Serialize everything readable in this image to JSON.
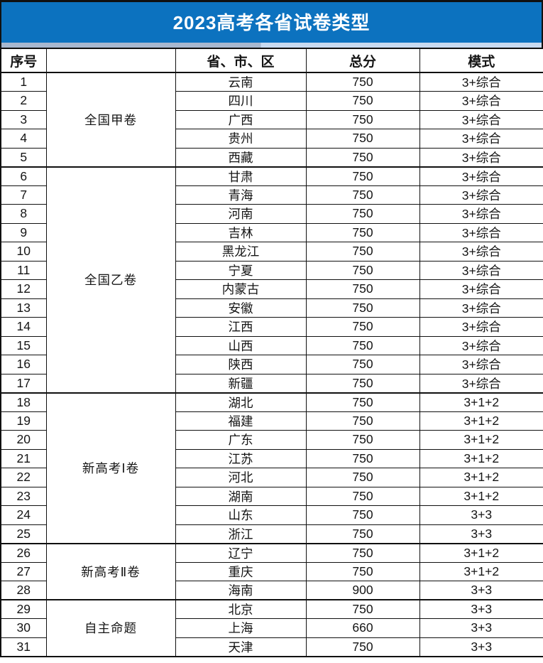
{
  "title": "2023高考各省试卷类型",
  "colors": {
    "banner_bg": "#0c72bf",
    "banner_text": "#ffffff",
    "table_border": "#101010",
    "strip_left": "#a8b8cf",
    "strip_right": "#c8daf0",
    "cell_bg": "#ffffff",
    "cell_text": "#151515"
  },
  "chart_data": {
    "type": "table",
    "title": "2023高考各省试卷类型",
    "columns": [
      "序号",
      "",
      "省、市、区",
      "总分",
      "模式"
    ],
    "header_labels": {
      "index": "序号",
      "group": "",
      "region": "省、市、区",
      "score": "总分",
      "mode": "模式"
    },
    "groups": [
      {
        "label": "全国甲卷",
        "rows": [
          [
            1,
            "云南",
            750,
            "3+综合"
          ],
          [
            2,
            "四川",
            750,
            "3+综合"
          ],
          [
            3,
            "广西",
            750,
            "3+综合"
          ],
          [
            4,
            "贵州",
            750,
            "3+综合"
          ],
          [
            5,
            "西藏",
            750,
            "3+综合"
          ]
        ]
      },
      {
        "label": "全国乙卷",
        "rows": [
          [
            6,
            "甘肃",
            750,
            "3+综合"
          ],
          [
            7,
            "青海",
            750,
            "3+综合"
          ],
          [
            8,
            "河南",
            750,
            "3+综合"
          ],
          [
            9,
            "吉林",
            750,
            "3+综合"
          ],
          [
            10,
            "黑龙江",
            750,
            "3+综合"
          ],
          [
            11,
            "宁夏",
            750,
            "3+综合"
          ],
          [
            12,
            "内蒙古",
            750,
            "3+综合"
          ],
          [
            13,
            "安徽",
            750,
            "3+综合"
          ],
          [
            14,
            "江西",
            750,
            "3+综合"
          ],
          [
            15,
            "山西",
            750,
            "3+综合"
          ],
          [
            16,
            "陕西",
            750,
            "3+综合"
          ],
          [
            17,
            "新疆",
            750,
            "3+综合"
          ]
        ]
      },
      {
        "label": "新高考Ⅰ卷",
        "rows": [
          [
            18,
            "湖北",
            750,
            "3+1+2"
          ],
          [
            19,
            "福建",
            750,
            "3+1+2"
          ],
          [
            20,
            "广东",
            750,
            "3+1+2"
          ],
          [
            21,
            "江苏",
            750,
            "3+1+2"
          ],
          [
            22,
            "河北",
            750,
            "3+1+2"
          ],
          [
            23,
            "湖南",
            750,
            "3+1+2"
          ],
          [
            24,
            "山东",
            750,
            "3+3"
          ],
          [
            25,
            "浙江",
            750,
            "3+3"
          ]
        ]
      },
      {
        "label": "新高考Ⅱ卷",
        "rows": [
          [
            26,
            "辽宁",
            750,
            "3+1+2"
          ],
          [
            27,
            "重庆",
            750,
            "3+1+2"
          ],
          [
            28,
            "海南",
            900,
            "3+3"
          ]
        ]
      },
      {
        "label": "自主命题",
        "rows": [
          [
            29,
            "北京",
            750,
            "3+3"
          ],
          [
            30,
            "上海",
            660,
            "3+3"
          ],
          [
            31,
            "天津",
            750,
            "3+3"
          ]
        ]
      }
    ]
  }
}
